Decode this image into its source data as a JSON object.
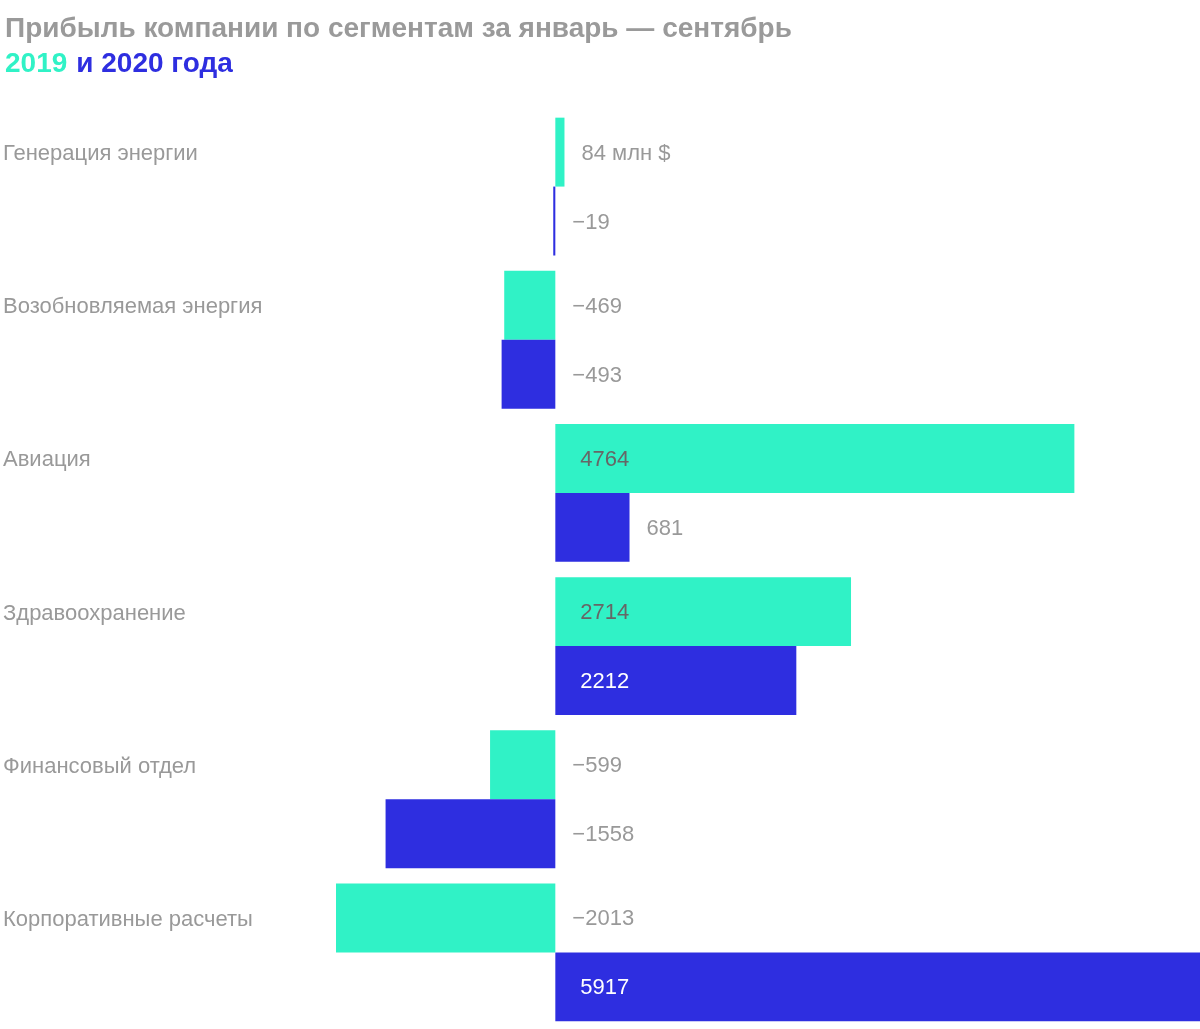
{
  "chart_data": {
    "type": "bar",
    "orientation": "horizontal",
    "title": "Прибыль компании по сегментам за январь — сентябрь",
    "categories": [
      "Генерация энергии",
      "Возобновляемая энергия",
      "Авиация",
      "Здравоохранение",
      "Финансовый отдел",
      "Корпоративные расчеты"
    ],
    "series": [
      {
        "name": "2019",
        "color": "#30f2c6",
        "values": [
          84,
          -469,
          4764,
          2714,
          -599,
          -2013
        ],
        "value_labels": [
          "84 млн $",
          "−469",
          "4764",
          "2714",
          "−599",
          "−2013"
        ]
      },
      {
        "name": "и 2020 года",
        "color": "#2e2ee0",
        "values": [
          -19,
          -493,
          681,
          2212,
          -1558,
          5917
        ],
        "value_labels": [
          "−19",
          "−493",
          "681",
          "2212",
          "−1558",
          "5917"
        ]
      }
    ],
    "legend": "top left"
  }
}
